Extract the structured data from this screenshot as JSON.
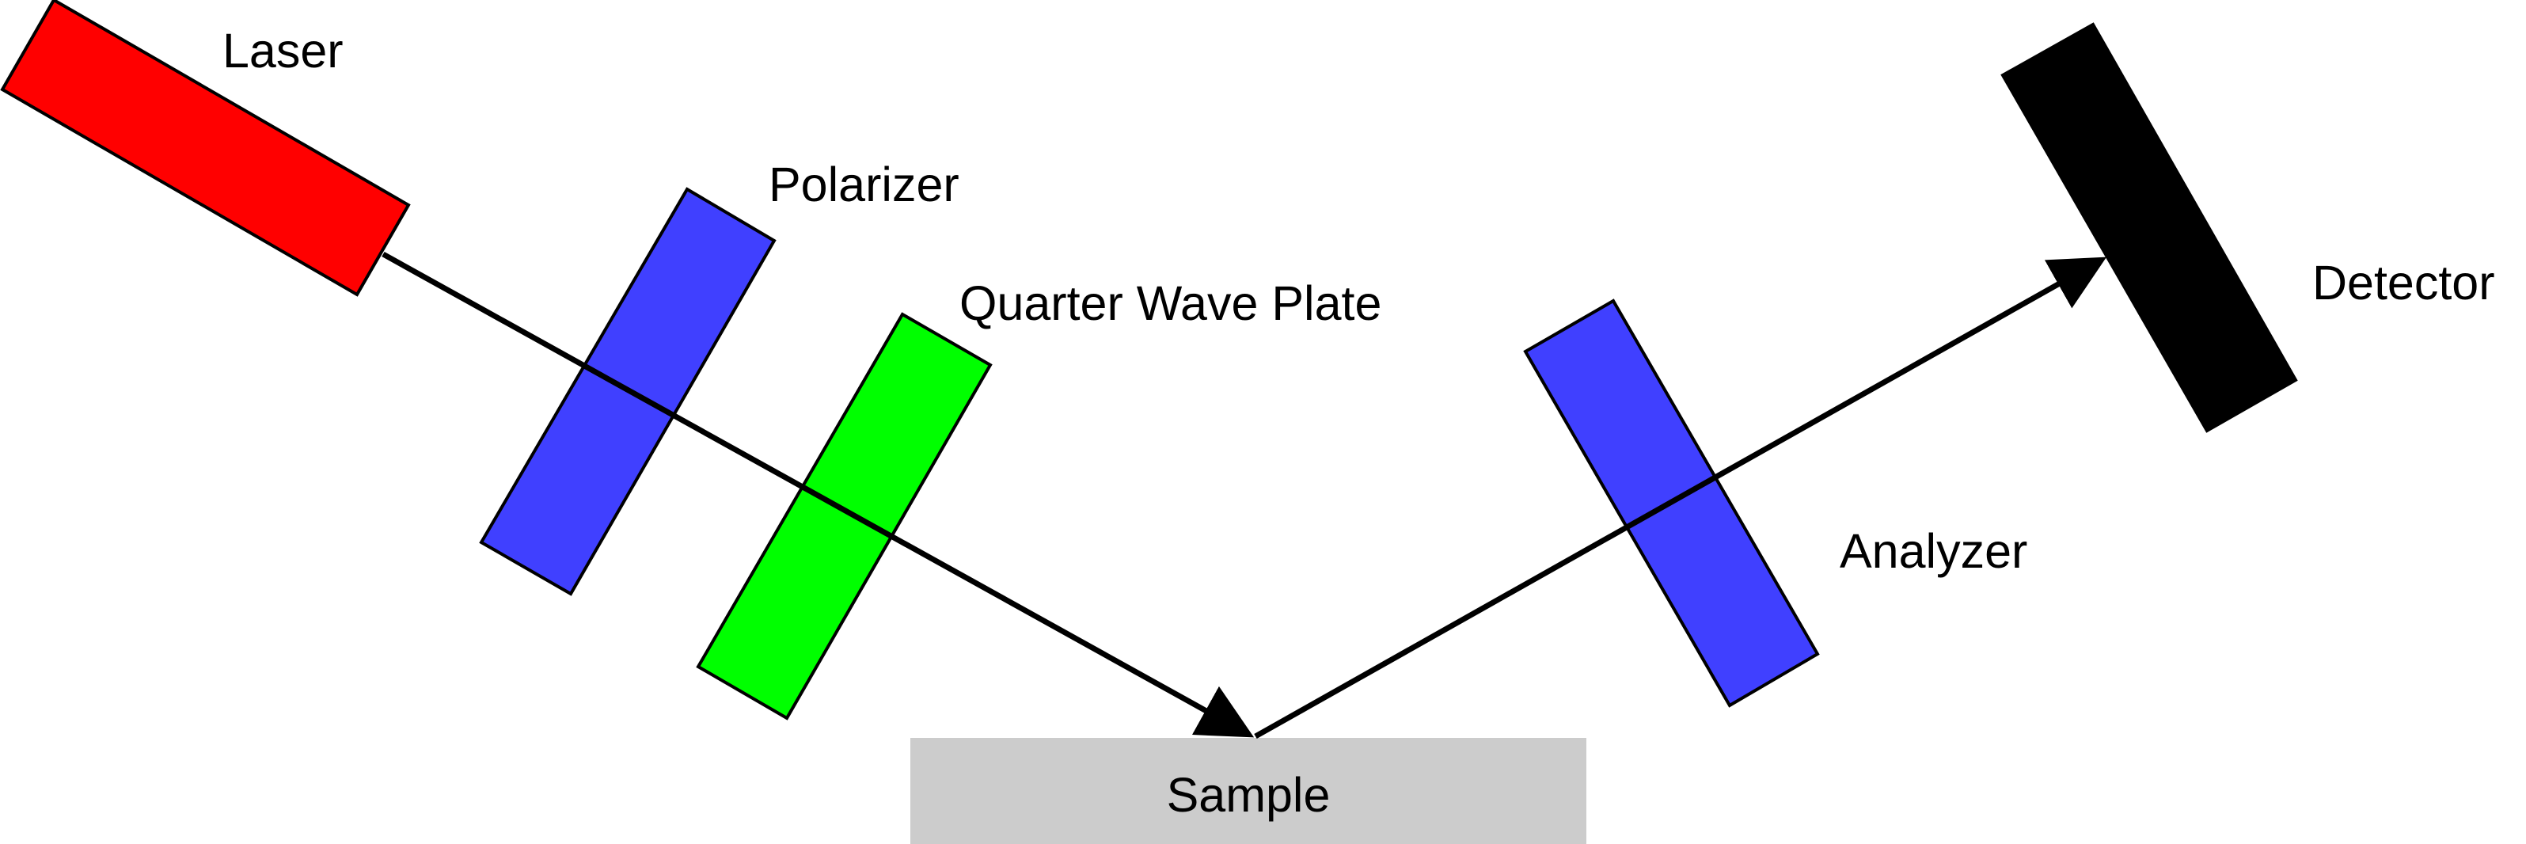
{
  "components": {
    "laser": {
      "label": "Laser",
      "color": "#ff0000"
    },
    "polarizer": {
      "label": "Polarizer",
      "color": "#4040ff"
    },
    "quarter_wave_plate": {
      "label": "Quarter Wave Plate",
      "color": "#00ff00"
    },
    "sample": {
      "label": "Sample",
      "color": "#cccccc"
    },
    "analyzer": {
      "label": "Analyzer",
      "color": "#4040ff"
    },
    "detector": {
      "label": "Detector",
      "color": "#000000"
    }
  },
  "beam_color": "#000000"
}
